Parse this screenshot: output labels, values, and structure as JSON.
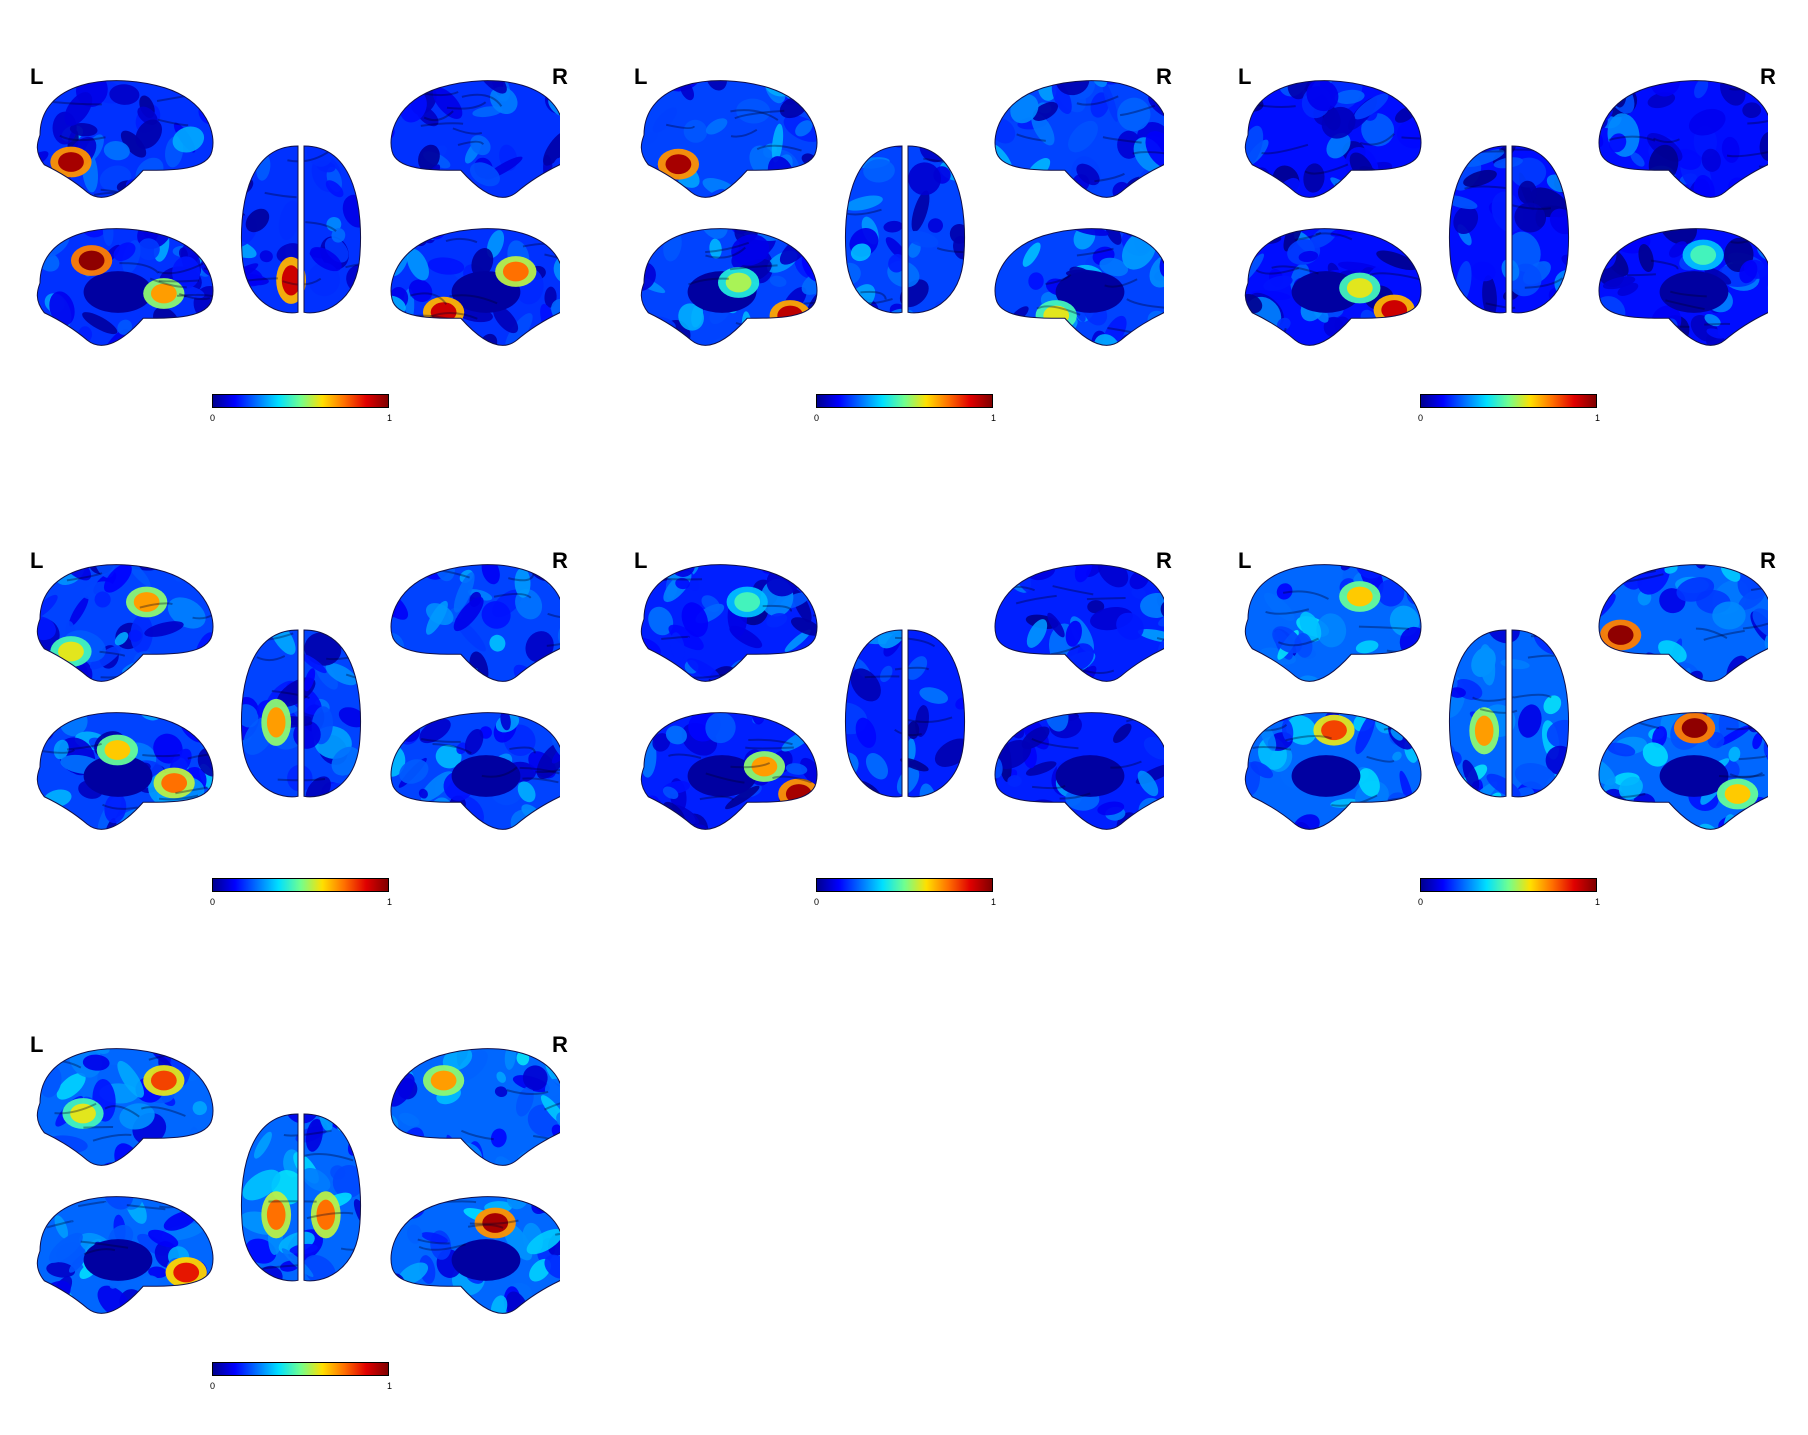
{
  "colormap": [
    "#00008f",
    "#0000ff",
    "#0070ff",
    "#00e0ff",
    "#70ff8f",
    "#ffe000",
    "#ff7000",
    "#e00000",
    "#800000"
  ],
  "colorbar": {
    "min_label": "0",
    "max_label": "1"
  },
  "hemisphere_labels": {
    "left": "L",
    "right": "R"
  },
  "panels": [
    {
      "id": 1,
      "base": 0.18,
      "hotspots": [
        {
          "view": "lat_left",
          "fx": 0.18,
          "fy": 0.7,
          "v": 0.95
        },
        {
          "view": "med_left",
          "fx": 0.3,
          "fy": 0.25,
          "v": 0.98
        },
        {
          "view": "med_left",
          "fx": 0.72,
          "fy": 0.55,
          "v": 0.7
        },
        {
          "view": "med_right",
          "fx": 0.72,
          "fy": 0.35,
          "v": 0.75
        },
        {
          "view": "med_right",
          "fx": 0.3,
          "fy": 0.72,
          "v": 0.9
        },
        {
          "view": "dorsal",
          "fx": 0.42,
          "fy": 0.8,
          "v": 0.9
        }
      ]
    },
    {
      "id": 2,
      "base": 0.2,
      "hotspots": [
        {
          "view": "lat_left",
          "fx": 0.2,
          "fy": 0.72,
          "v": 0.95
        },
        {
          "view": "med_left",
          "fx": 0.85,
          "fy": 0.75,
          "v": 0.92
        },
        {
          "view": "med_left",
          "fx": 0.55,
          "fy": 0.45,
          "v": 0.55
        },
        {
          "view": "med_right",
          "fx": 0.35,
          "fy": 0.75,
          "v": 0.6
        }
      ]
    },
    {
      "id": 3,
      "base": 0.14,
      "hotspots": [
        {
          "view": "med_left",
          "fx": 0.85,
          "fy": 0.7,
          "v": 0.9
        },
        {
          "view": "med_left",
          "fx": 0.65,
          "fy": 0.5,
          "v": 0.6
        },
        {
          "view": "med_right",
          "fx": 0.6,
          "fy": 0.2,
          "v": 0.45
        }
      ]
    },
    {
      "id": 4,
      "base": 0.2,
      "hotspots": [
        {
          "view": "lat_left",
          "fx": 0.62,
          "fy": 0.3,
          "v": 0.7
        },
        {
          "view": "lat_left",
          "fx": 0.18,
          "fy": 0.75,
          "v": 0.6
        },
        {
          "view": "med_left",
          "fx": 0.78,
          "fy": 0.6,
          "v": 0.75
        },
        {
          "view": "med_left",
          "fx": 0.45,
          "fy": 0.3,
          "v": 0.65
        },
        {
          "view": "dorsal",
          "fx": 0.3,
          "fy": 0.55,
          "v": 0.7
        }
      ]
    },
    {
      "id": 5,
      "base": 0.16,
      "hotspots": [
        {
          "view": "med_left",
          "fx": 0.9,
          "fy": 0.7,
          "v": 0.95
        },
        {
          "view": "med_left",
          "fx": 0.7,
          "fy": 0.45,
          "v": 0.7
        },
        {
          "view": "lat_left",
          "fx": 0.6,
          "fy": 0.3,
          "v": 0.45
        }
      ]
    },
    {
      "id": 6,
      "base": 0.24,
      "hotspots": [
        {
          "view": "lat_left",
          "fx": 0.65,
          "fy": 0.25,
          "v": 0.65
        },
        {
          "view": "lat_right",
          "fx": 0.12,
          "fy": 0.6,
          "v": 0.98
        },
        {
          "view": "med_left",
          "fx": 0.5,
          "fy": 0.12,
          "v": 0.8
        },
        {
          "view": "med_right",
          "fx": 0.55,
          "fy": 0.1,
          "v": 0.98
        },
        {
          "view": "med_right",
          "fx": 0.8,
          "fy": 0.7,
          "v": 0.65
        },
        {
          "view": "dorsal",
          "fx": 0.3,
          "fy": 0.6,
          "v": 0.7
        }
      ]
    },
    {
      "id": 7,
      "base": 0.24,
      "hotspots": [
        {
          "view": "lat_left",
          "fx": 0.72,
          "fy": 0.25,
          "v": 0.8
        },
        {
          "view": "lat_left",
          "fx": 0.25,
          "fy": 0.55,
          "v": 0.6
        },
        {
          "view": "lat_right",
          "fx": 0.3,
          "fy": 0.25,
          "v": 0.7
        },
        {
          "view": "med_left",
          "fx": 0.85,
          "fy": 0.65,
          "v": 0.85
        },
        {
          "view": "med_right",
          "fx": 0.6,
          "fy": 0.2,
          "v": 0.95
        },
        {
          "view": "dorsal",
          "fx": 0.3,
          "fy": 0.6,
          "v": 0.75
        },
        {
          "view": "dorsal",
          "fx": 0.7,
          "fy": 0.6,
          "v": 0.75
        }
      ]
    }
  ]
}
